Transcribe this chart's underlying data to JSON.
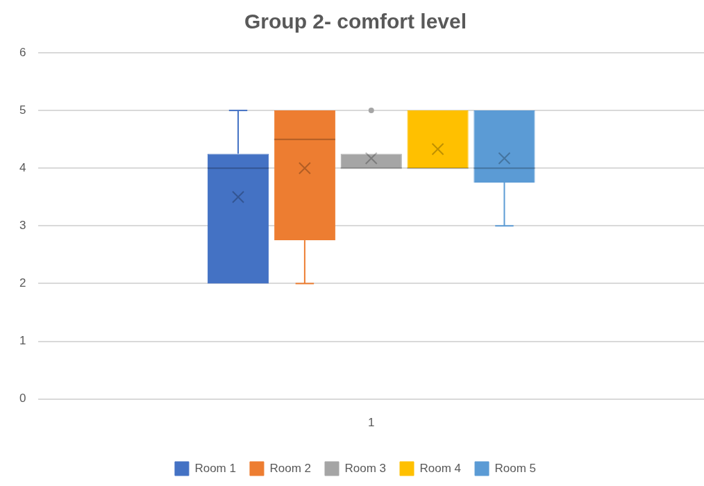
{
  "chart_data": {
    "type": "box",
    "title": "Group 2- comfort level",
    "categories": [
      "1"
    ],
    "series": [
      {
        "name": "Room 1",
        "color": "#4472c4",
        "boxes": [
          {
            "low": 2,
            "q1": 2,
            "median": 4,
            "q3": 4.25,
            "high": 5,
            "mean": 3.5
          }
        ]
      },
      {
        "name": "Room 2",
        "color": "#ed7d31",
        "boxes": [
          {
            "low": 2,
            "q1": 2.75,
            "median": 4.5,
            "q3": 5,
            "high": 5,
            "mean": 4
          }
        ]
      },
      {
        "name": "Room 3",
        "color": "#a5a5a5",
        "boxes": [
          {
            "low": 4,
            "q1": 4,
            "median": 4,
            "q3": 4.25,
            "high": 4.25,
            "mean": 4.17,
            "outliers": [
              5
            ]
          }
        ]
      },
      {
        "name": "Room 4",
        "color": "#ffc000",
        "boxes": [
          {
            "low": 4,
            "q1": 4,
            "median": 4,
            "q3": 5,
            "high": 5,
            "mean": 4.33
          }
        ]
      },
      {
        "name": "Room 5",
        "color": "#5b9bd5",
        "boxes": [
          {
            "low": 3,
            "q1": 3.75,
            "median": 4,
            "q3": 5,
            "high": 5,
            "mean": 4.17
          }
        ]
      }
    ],
    "ylim": [
      0,
      6
    ],
    "yticks": [
      0,
      1,
      2,
      3,
      4,
      5,
      6
    ],
    "grid": "y",
    "legend": "bottom"
  }
}
